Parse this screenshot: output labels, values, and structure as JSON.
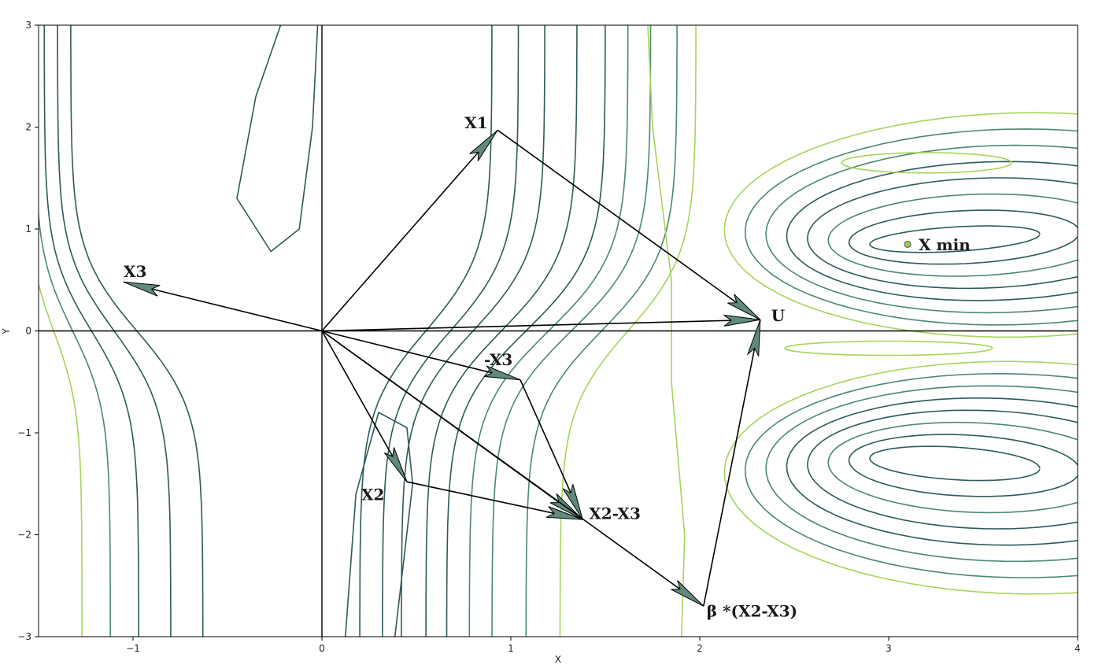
{
  "chart_data": {
    "type": "contour-vector-diagram",
    "xlabel": "X",
    "ylabel": "Y",
    "xlim": [
      -1.5,
      4
    ],
    "ylim": [
      -3,
      3
    ],
    "x_ticks": [
      "-1",
      "0",
      "1",
      "2",
      "3",
      "4"
    ],
    "y_ticks": [
      "3",
      "2",
      "1",
      "0",
      "-1",
      "-2",
      "-3"
    ],
    "x_tick_values": [
      -1,
      0,
      1,
      2,
      3,
      4
    ],
    "y_tick_values": [
      3,
      2,
      1,
      0,
      -1,
      -2,
      -3
    ],
    "colors": {
      "axes": "#000000",
      "arrow_fill": "#5f8a7c",
      "contour_dark": "#2e5a5a",
      "contour_mid": "#4a8a6a",
      "contour_light": "#a6d45a",
      "min_marker": "#9ccc55"
    },
    "vectors": [
      {
        "label": "X1",
        "from": [
          0,
          0
        ],
        "to": [
          0.93,
          1.97
        ]
      },
      {
        "label": "X3",
        "from": [
          0,
          0
        ],
        "to": [
          -1.05,
          0.48
        ]
      },
      {
        "label": "U",
        "from": [
          0,
          0
        ],
        "to": [
          2.32,
          0.11
        ]
      },
      {
        "label": "-X3",
        "from": [
          0,
          0
        ],
        "to": [
          1.05,
          -0.48
        ]
      },
      {
        "label": "X2",
        "from": [
          0,
          0
        ],
        "to": [
          0.45,
          -1.48
        ]
      },
      {
        "label": "X2-X3",
        "from": [
          0,
          0
        ],
        "to": [
          1.38,
          -1.85
        ]
      },
      {
        "label": "β *(X2-X3)",
        "from": [
          0,
          0
        ],
        "to": [
          2.02,
          -2.7
        ]
      },
      {
        "label": "",
        "from": [
          0.45,
          -1.48
        ],
        "to": [
          1.38,
          -1.85
        ]
      },
      {
        "label": "",
        "from": [
          1.05,
          -0.48
        ],
        "to": [
          1.38,
          -1.85
        ]
      },
      {
        "label": "",
        "from": [
          0.93,
          1.97
        ],
        "to": [
          2.32,
          0.11
        ]
      },
      {
        "label": "",
        "from": [
          2.02,
          -2.7
        ],
        "to": [
          2.32,
          0.11
        ]
      }
    ],
    "x_min_point": {
      "label": "X min",
      "x": 3.1,
      "y": 0.85
    }
  }
}
